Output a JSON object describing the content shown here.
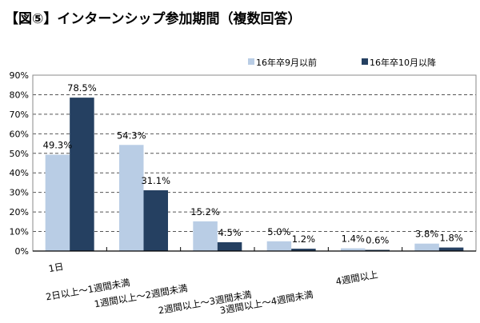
{
  "chart_data": {
    "type": "bar",
    "title": "【図⑤】インターンシップ参加期間（複数回答）",
    "categories": [
      "1日",
      "2日以上～1週間未満",
      "1週間以上～2週間未満",
      "2週間以上～3週間未満",
      "3週間以上～4週間未満",
      "4週間以上"
    ],
    "series": [
      {
        "name": "16年卒9月以前",
        "values": [
          49.3,
          54.3,
          15.2,
          5.0,
          1.4,
          3.8
        ],
        "color": "#b9cde5"
      },
      {
        "name": "16年卒10月以降",
        "values": [
          78.5,
          31.1,
          4.5,
          1.2,
          0.6,
          1.8
        ],
        "color": "#254061"
      }
    ],
    "data_labels": [
      [
        "49.3%",
        "54.3%",
        "15.2%",
        "5.0%",
        "1.4%",
        "3.8%"
      ],
      [
        "78.5%",
        "31.1%",
        "4.5%",
        "1.2%",
        "0.6%",
        "1.8%"
      ]
    ],
    "yticks": [
      "0%",
      "10%",
      "20%",
      "30%",
      "40%",
      "50%",
      "60%",
      "70%",
      "80%",
      "90%"
    ],
    "ylim": [
      0,
      90
    ],
    "unit": "%",
    "grid": "dashed horizontal",
    "legend": "top-right"
  }
}
